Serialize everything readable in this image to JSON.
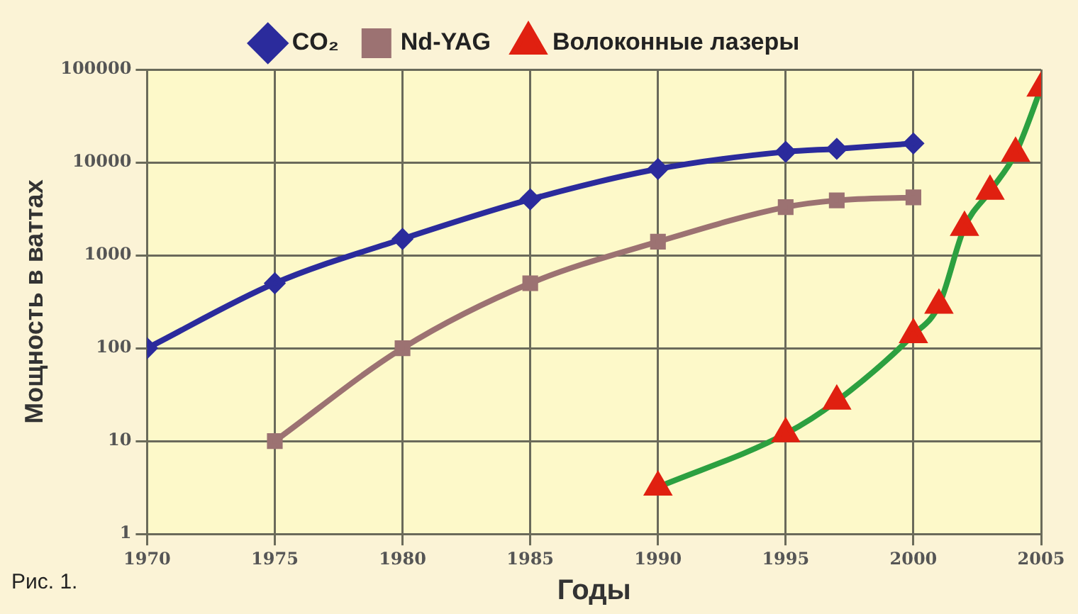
{
  "chart_data": {
    "type": "line",
    "xlabel": "Годы",
    "ylabel": "Мощность в ваттах",
    "annotations": [
      "Рис. 1."
    ],
    "xlim": [
      1970,
      2005
    ],
    "xticks": [
      1970,
      1975,
      1980,
      1985,
      1990,
      1995,
      2000,
      2005
    ],
    "ylim": [
      1,
      100000
    ],
    "yticks": [
      1,
      10,
      100,
      1000,
      10000,
      100000
    ],
    "log": "y",
    "grid": true,
    "legend": "top",
    "series": [
      {
        "name": "CO₂",
        "color": "#2b2b9c",
        "marker": "diamond",
        "x": [
          1970,
          1975,
          1980,
          1985,
          1990,
          1995,
          1997,
          2000
        ],
        "values": [
          100,
          500,
          1500,
          4000,
          8500,
          13000,
          14000,
          16000
        ]
      },
      {
        "name": "Nd-YAG",
        "color": "#9c7272",
        "marker": "square",
        "x": [
          1975,
          1980,
          1985,
          1990,
          1995,
          1997,
          2000
        ],
        "values": [
          10,
          100,
          500,
          1400,
          3300,
          3900,
          4200
        ]
      },
      {
        "name": "Волоконные лазеры",
        "color": "#2ca040",
        "colors": [
          "#e02010",
          "#e02010",
          "#e02010",
          "#e02010",
          "#e02010",
          "#e02010",
          "#e02010",
          "#e02010",
          "#e02010"
        ],
        "marker": "triangle",
        "x": [
          1990,
          1995,
          1997,
          2000,
          2001,
          2002,
          2003,
          2004,
          2005
        ],
        "values": [
          3.2,
          12,
          27,
          140,
          290,
          2000,
          4900,
          12500,
          63000
        ]
      }
    ]
  }
}
